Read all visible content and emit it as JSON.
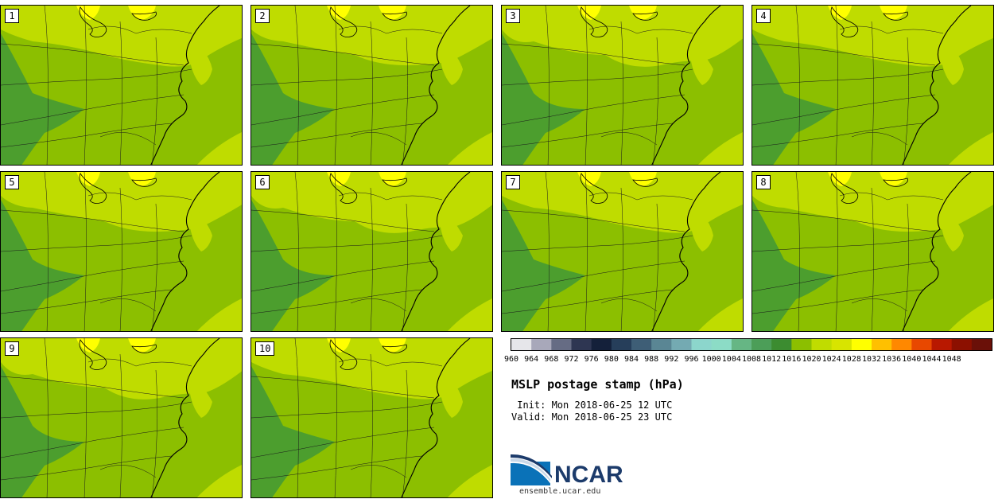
{
  "panels": [
    {
      "label": "1"
    },
    {
      "label": "2"
    },
    {
      "label": "3"
    },
    {
      "label": "4"
    },
    {
      "label": "5"
    },
    {
      "label": "6"
    },
    {
      "label": "7"
    },
    {
      "label": "8"
    },
    {
      "label": "9"
    },
    {
      "label": "10"
    }
  ],
  "colorbar": {
    "ticks": [
      "960",
      "964",
      "968",
      "972",
      "976",
      "980",
      "984",
      "988",
      "992",
      "996",
      "1000",
      "1004",
      "1008",
      "1012",
      "1016",
      "1020",
      "1024",
      "1028",
      "1032",
      "1036",
      "1040",
      "1044",
      "1048"
    ],
    "colors": [
      "#e6e6ea",
      "#a8a8ba",
      "#666c84",
      "#2e3652",
      "#14203a",
      "#263e5a",
      "#3e5e76",
      "#5a8694",
      "#74aab2",
      "#8cd6cc",
      "#8cdcc6",
      "#66b684",
      "#4c9e58",
      "#3c8c30",
      "#8cbf00",
      "#c0dc00",
      "#d8e400",
      "#ffff00",
      "#ffc000",
      "#ff8800",
      "#e84800",
      "#b81800",
      "#8c1000",
      "#6a1008"
    ]
  },
  "map_colors": {
    "p1016": "#4c9e2e",
    "p1020": "#8cbf00",
    "p1024": "#bfdc00",
    "p1028": "#ffff00"
  },
  "title": "MSLP postage stamp (hPa)",
  "init": " Init: Mon 2018-06-25 12 UTC",
  "valid": "Valid: Mon 2018-06-25 23 UTC",
  "logo": {
    "name": "NCAR",
    "url": "ensemble.ucar.edu"
  }
}
